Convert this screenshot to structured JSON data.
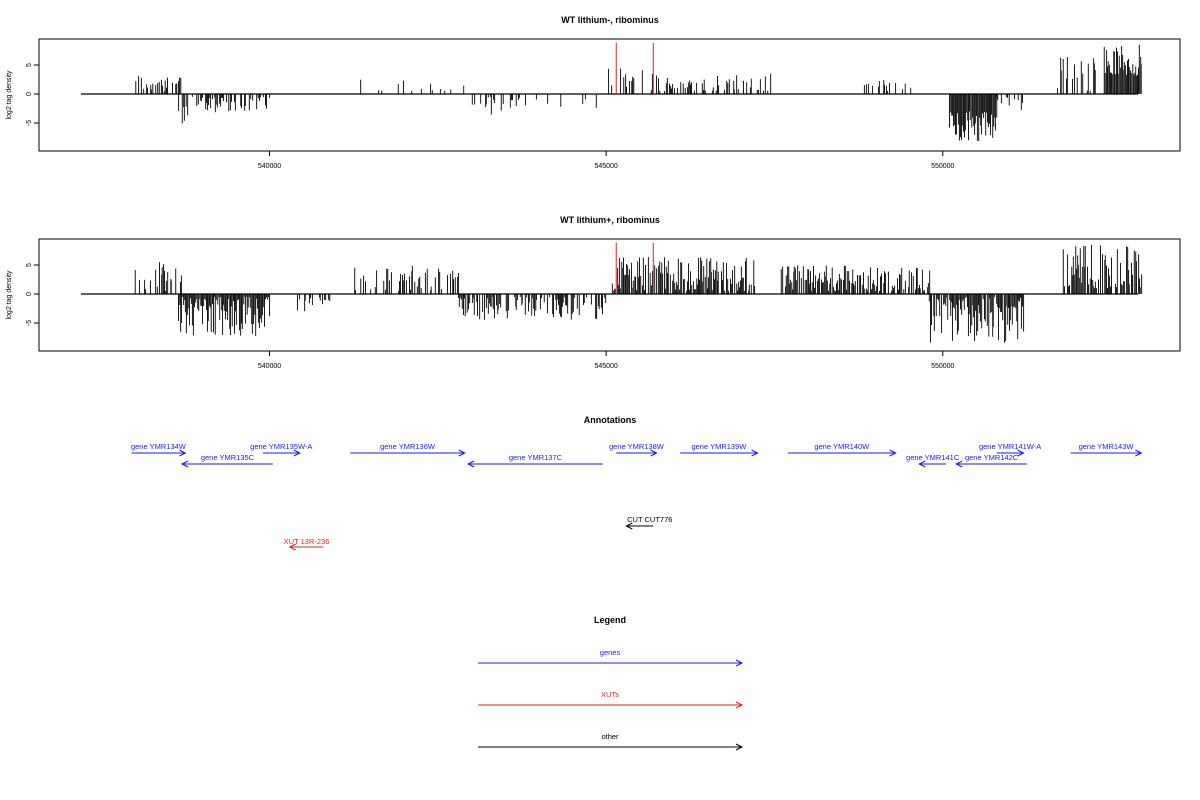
{
  "chart_data": [
    {
      "type": "bar",
      "title": "WT lithium-, ribominus",
      "xlabel": "",
      "ylabel": "log2 tag density",
      "xlim": [
        537200,
        552900
      ],
      "ylim": [
        -10,
        10
      ],
      "xticks": [
        540000,
        545000,
        550000
      ],
      "yticks": [
        -5,
        0,
        5
      ],
      "xtick_labels": [
        "540000",
        "545000",
        "550000"
      ],
      "ytick_labels": [
        "-5",
        "0",
        "5"
      ],
      "regions": [
        {
          "start": 538000,
          "end": 538700,
          "sign": 1,
          "min": 0.5,
          "max": 3.6,
          "density": 0.45
        },
        {
          "start": 538650,
          "end": 538900,
          "sign": -1,
          "min": 0.5,
          "max": 5.5,
          "density": 0.5
        },
        {
          "start": 538900,
          "end": 540000,
          "sign": -1,
          "min": 0.5,
          "max": 3.2,
          "density": 0.55
        },
        {
          "start": 541300,
          "end": 542900,
          "sign": 1,
          "min": 0.5,
          "max": 2.5,
          "density": 0.08
        },
        {
          "start": 543000,
          "end": 543500,
          "sign": -1,
          "min": 0.5,
          "max": 4,
          "density": 0.4
        },
        {
          "start": 543500,
          "end": 544900,
          "sign": -1,
          "min": 0.5,
          "max": 2.5,
          "density": 0.12
        },
        {
          "start": 545000,
          "end": 545900,
          "sign": 1,
          "min": 0.5,
          "max": 4.5,
          "density": 0.3
        },
        {
          "start": 545800,
          "end": 547500,
          "sign": 1,
          "min": 0.5,
          "max": 3.5,
          "density": 0.35
        },
        {
          "start": 548800,
          "end": 549600,
          "sign": 1,
          "min": 0.5,
          "max": 3,
          "density": 0.4
        },
        {
          "start": 550100,
          "end": 550800,
          "sign": -1,
          "min": 3,
          "max": 8.5,
          "density": 1
        },
        {
          "start": 550800,
          "end": 551200,
          "sign": -1,
          "min": 0.5,
          "max": 3,
          "density": 0.3
        },
        {
          "start": 551700,
          "end": 552300,
          "sign": 1,
          "min": 0.5,
          "max": 7,
          "density": 0.35
        },
        {
          "start": 552400,
          "end": 552950,
          "sign": 1,
          "min": 3,
          "max": 8.5,
          "density": 1
        }
      ],
      "marker_lines": {
        "color": "#e02020",
        "x": [
          545150,
          545700
        ],
        "top": 9,
        "bottom": 0
      }
    },
    {
      "type": "bar",
      "title": "WT lithium+, ribominus",
      "xlabel": "",
      "ylabel": "log2 tag density",
      "xlim": [
        537200,
        552900
      ],
      "ylim": [
        -10,
        10
      ],
      "xticks": [
        540000,
        545000,
        550000
      ],
      "yticks": [
        -5,
        0,
        5
      ],
      "xtick_labels": [
        "540000",
        "545000",
        "550000"
      ],
      "ytick_labels": [
        "-5",
        "0",
        "5"
      ],
      "regions": [
        {
          "start": 538000,
          "end": 538700,
          "sign": 1,
          "min": 0.5,
          "max": 5.5,
          "density": 0.55
        },
        {
          "start": 538650,
          "end": 540000,
          "sign": -1,
          "min": 0.5,
          "max": 7.5,
          "density": 1
        },
        {
          "start": 540400,
          "end": 540900,
          "sign": -1,
          "min": 0.5,
          "max": 3,
          "density": 0.3
        },
        {
          "start": 541200,
          "end": 542800,
          "sign": 1,
          "min": 0.5,
          "max": 5,
          "density": 0.45
        },
        {
          "start": 542800,
          "end": 545000,
          "sign": -1,
          "min": 0.5,
          "max": 4.5,
          "density": 0.65
        },
        {
          "start": 545100,
          "end": 547200,
          "sign": 1,
          "min": 0.5,
          "max": 6.5,
          "density": 0.9
        },
        {
          "start": 547600,
          "end": 549800,
          "sign": 1,
          "min": 0.5,
          "max": 5,
          "density": 0.75
        },
        {
          "start": 549800,
          "end": 551200,
          "sign": -1,
          "min": 0.5,
          "max": 8.5,
          "density": 0.9
        },
        {
          "start": 551800,
          "end": 552950,
          "sign": 1,
          "min": 1,
          "max": 8.5,
          "density": 0.85
        }
      ],
      "marker_lines": {
        "color": "#e02020",
        "x": [
          545150,
          545700
        ],
        "top": 9,
        "bottom": 0
      }
    }
  ],
  "annotations": {
    "title": "Annotations",
    "genes_color": "#1a1aee",
    "xut_color": "#e02020",
    "other_color": "#000000",
    "genes": [
      {
        "label": "gene YMR134W",
        "start": 537950,
        "end": 538750,
        "strand": "+",
        "row": 0
      },
      {
        "label": "gene YMR135C",
        "start": 538700,
        "end": 540050,
        "strand": "-",
        "row": 1
      },
      {
        "label": "gene YMR135W-A",
        "start": 539900,
        "end": 540450,
        "strand": "+",
        "row": 0
      },
      {
        "label": "gene YMR136W",
        "start": 541200,
        "end": 542900,
        "strand": "+",
        "row": 0
      },
      {
        "label": "gene YMR137C",
        "start": 542950,
        "end": 544950,
        "strand": "-",
        "row": 1
      },
      {
        "label": "gene YMR138W",
        "start": 545150,
        "end": 545750,
        "strand": "+",
        "row": 0
      },
      {
        "label": "gene YMR139W",
        "start": 546100,
        "end": 547250,
        "strand": "+",
        "row": 0
      },
      {
        "label": "gene YMR140W",
        "start": 547700,
        "end": 549300,
        "strand": "+",
        "row": 0
      },
      {
        "label": "gene YMR141C",
        "start": 549650,
        "end": 550050,
        "strand": "-",
        "row": 1
      },
      {
        "label": "gene YMR141W-A",
        "start": 550800,
        "end": 551200,
        "strand": "+",
        "row": 0
      },
      {
        "label": "gene YMR142C",
        "start": 550200,
        "end": 551250,
        "strand": "-",
        "row": 1
      },
      {
        "label": "gene YMR143W",
        "start": 551900,
        "end": 552950,
        "strand": "+",
        "row": 0
      }
    ],
    "other": [
      {
        "label": "CUT CUT776",
        "start": 545300,
        "end": 545700,
        "strand": "-"
      }
    ],
    "xuts": [
      {
        "label": "XUT 13R-236",
        "start": 540300,
        "end": 540800,
        "strand": "-"
      }
    ]
  },
  "legend": {
    "title": "Legend",
    "items": [
      {
        "label": "genes",
        "color": "#1a1aee"
      },
      {
        "label": "XUTs",
        "color": "#e02020"
      },
      {
        "label": "other",
        "color": "#000000"
      }
    ]
  }
}
